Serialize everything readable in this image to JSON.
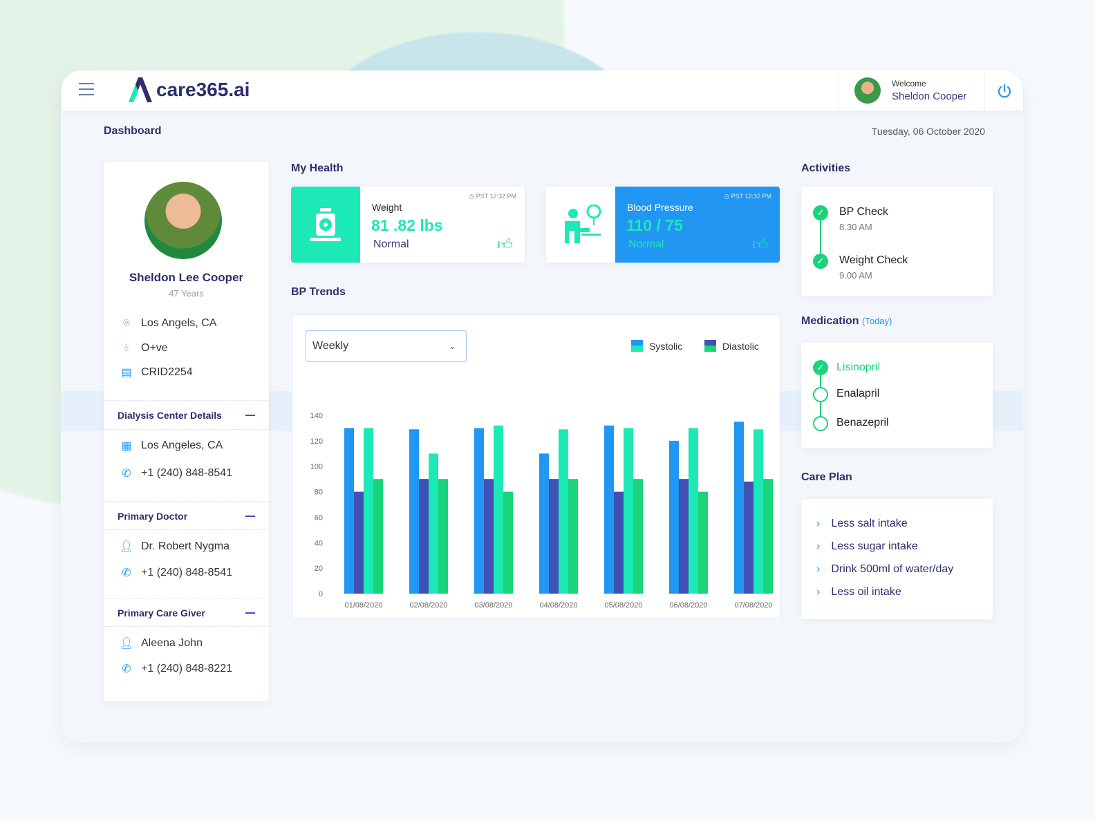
{
  "header": {
    "brand": "care365.ai",
    "welcome": "Welcome",
    "user_name": "Sheldon Cooper"
  },
  "page": {
    "title": "Dashboard",
    "date": "Tuesday, 06 October 2020"
  },
  "profile": {
    "name": "Sheldon Lee Cooper",
    "age": "47 Years",
    "location": "Los Angels, CA",
    "blood_group": "O+ve",
    "crid": "CRID2254"
  },
  "dialysis": {
    "title": "Dialysis Center Details",
    "location": "Los Angeles, CA",
    "phone": "+1 (240) 848-8541"
  },
  "doctor": {
    "title": "Primary Doctor",
    "name": "Dr. Robert Nygma",
    "phone": "+1 (240) 848-8541"
  },
  "care_giver": {
    "title": "Primary Care Giver",
    "name": "Aleena John",
    "phone": "+1 (240) 848-8221"
  },
  "my_health": {
    "title": "My Health",
    "weight": {
      "label": "Weight",
      "value": "81 .82 lbs",
      "status": "Normal",
      "time": "PST 12:32 PM"
    },
    "bp": {
      "label": "Blood Pressure",
      "value": "110 / 75",
      "status": "Normal",
      "time": "PST 12:32 PM"
    }
  },
  "bp_trends": {
    "title": "BP Trends",
    "period": "Weekly"
  },
  "chart_data": {
    "type": "bar",
    "ylim": [
      0,
      140
    ],
    "yticks": [
      0,
      20,
      40,
      60,
      80,
      100,
      120,
      140
    ],
    "grid": false,
    "legend_position": "top-right",
    "legend": [
      {
        "name": "Systolic",
        "colors": [
          "#2196f3",
          "#1de9b6"
        ]
      },
      {
        "name": "Diastolic",
        "colors": [
          "#3f51b5",
          "#19d47a"
        ]
      }
    ],
    "categories": [
      "01/08/2020",
      "02/08/2020",
      "03/08/2020",
      "04/08/2020",
      "05/08/2020",
      "06/08/2020",
      "07/08/2020"
    ],
    "series": [
      {
        "color": "#2196f3",
        "values": [
          130,
          129,
          130,
          110,
          132,
          120,
          135
        ]
      },
      {
        "color": "#3f51b5",
        "values": [
          80,
          90,
          90,
          90,
          80,
          90,
          88
        ]
      },
      {
        "color": "#1de9b6",
        "values": [
          130,
          110,
          132,
          129,
          130,
          130,
          129
        ]
      },
      {
        "color": "#19d47a",
        "values": [
          90,
          90,
          80,
          90,
          90,
          80,
          90
        ]
      }
    ]
  },
  "activities": {
    "title": "Activities",
    "items": [
      {
        "name": "BP Check",
        "time": "8.30 AM"
      },
      {
        "name": "Weight Check",
        "time": "9.00 AM"
      }
    ]
  },
  "medication": {
    "title": "Medication",
    "note": "(Today)",
    "items": [
      "Lisinopril",
      "Enalapril",
      "Benazepril"
    ]
  },
  "care_plan": {
    "title": "Care Plan",
    "items": [
      "Less salt intake",
      "Less sugar intake",
      "Drink 500ml of water/day",
      "Less oil intake"
    ]
  },
  "colors": {
    "primary": "#2196f3",
    "accent": "#1de9b6",
    "navy": "#2d2f6b"
  }
}
